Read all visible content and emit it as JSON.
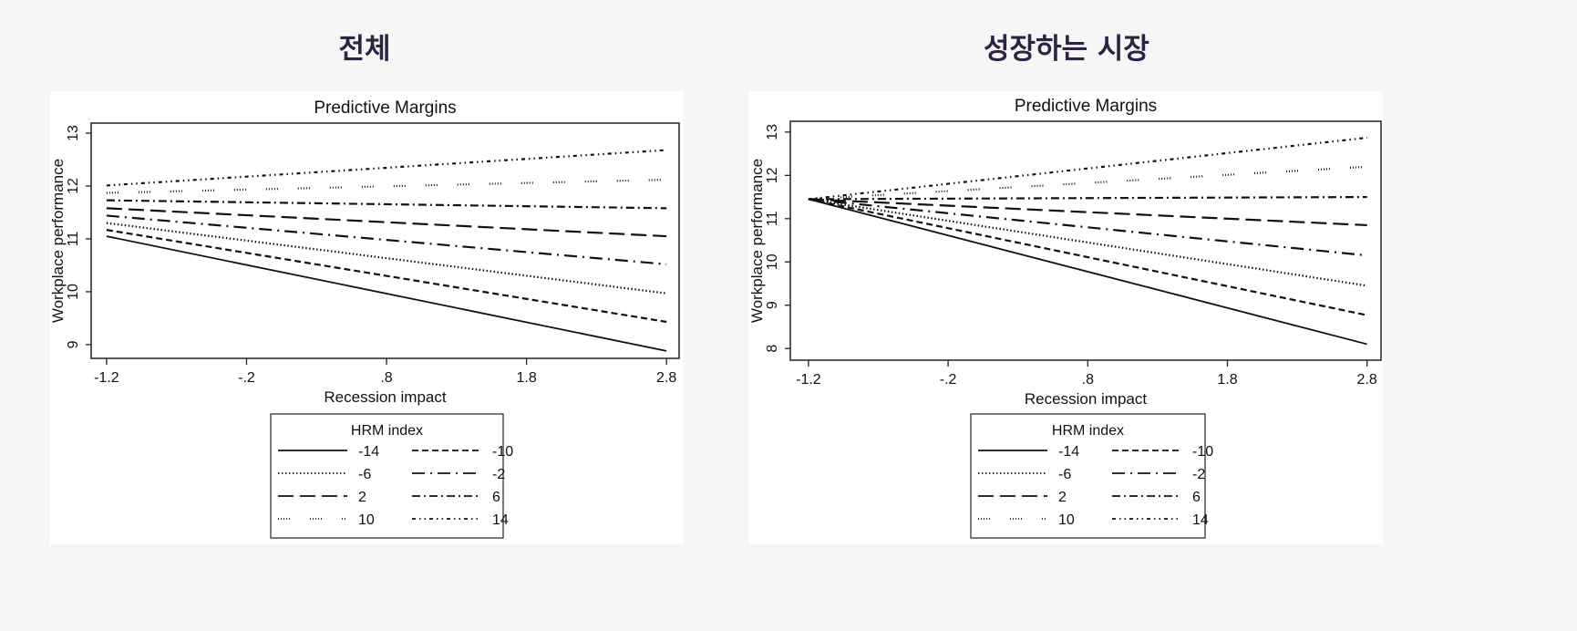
{
  "sections": [
    {
      "title": "전체"
    },
    {
      "title": "성장하는 시장"
    }
  ],
  "chart_data": [
    {
      "type": "line",
      "title": "Predictive Margins",
      "xlabel": "Recession impact",
      "ylabel": "Workplace performance",
      "x": [
        -1.2,
        2.8
      ],
      "xticks": [
        -1.2,
        -0.2,
        0.8,
        1.8,
        2.8
      ],
      "xtick_labels": [
        "-1.2",
        "-.2",
        ".8",
        "1.8",
        "2.8"
      ],
      "yticks": [
        9,
        10,
        11,
        12,
        13
      ],
      "ytick_labels": [
        "9",
        "10",
        "11",
        "12",
        "13"
      ],
      "xlim": [
        -1.31,
        2.89
      ],
      "ylim": [
        8.74,
        13.19
      ],
      "grid": false,
      "legend": {
        "title": "HRM index",
        "placement": "bottom"
      },
      "series": [
        {
          "name": "-14",
          "style": "solid",
          "values": [
            11.05,
            8.88
          ]
        },
        {
          "name": "-10",
          "style": "dash",
          "values": [
            11.17,
            9.43
          ]
        },
        {
          "name": "-6",
          "style": "dot",
          "values": [
            11.3,
            9.97
          ]
        },
        {
          "name": "-2",
          "style": "longdash-dot",
          "values": [
            11.44,
            10.52
          ]
        },
        {
          "name": "2",
          "style": "longdash",
          "values": [
            11.58,
            11.05
          ]
        },
        {
          "name": "6",
          "style": "dash-dot",
          "values": [
            11.73,
            11.58
          ]
        },
        {
          "name": "10",
          "style": "sparse-dot",
          "values": [
            11.87,
            12.12
          ]
        },
        {
          "name": "14",
          "style": "dash-dot-dot",
          "values": [
            12.01,
            12.68
          ]
        }
      ]
    },
    {
      "type": "line",
      "title": "Predictive Margins",
      "xlabel": "Recession impact",
      "ylabel": "Workplace performance",
      "x": [
        -1.2,
        2.8
      ],
      "xticks": [
        -1.2,
        -0.2,
        0.8,
        1.8,
        2.8
      ],
      "xtick_labels": [
        "-1.2",
        "-.2",
        ".8",
        "1.8",
        "2.8"
      ],
      "yticks": [
        8,
        9,
        10,
        11,
        12,
        13
      ],
      "ytick_labels": [
        "8",
        "9",
        "10",
        "11",
        "12",
        "13"
      ],
      "xlim": [
        -1.33,
        2.9
      ],
      "ylim": [
        7.73,
        13.25
      ],
      "grid": false,
      "legend": {
        "title": "HRM index",
        "placement": "bottom"
      },
      "series": [
        {
          "name": "-14",
          "style": "solid",
          "values": [
            11.45,
            8.1
          ]
        },
        {
          "name": "-10",
          "style": "dash",
          "values": [
            11.45,
            8.77
          ]
        },
        {
          "name": "-6",
          "style": "dot",
          "values": [
            11.45,
            9.45
          ]
        },
        {
          "name": "-2",
          "style": "longdash-dot",
          "values": [
            11.45,
            10.15
          ]
        },
        {
          "name": "2",
          "style": "longdash",
          "values": [
            11.45,
            10.85
          ]
        },
        {
          "name": "6",
          "style": "dash-dot",
          "values": [
            11.45,
            11.5
          ]
        },
        {
          "name": "10",
          "style": "sparse-dot",
          "values": [
            11.45,
            12.2
          ]
        },
        {
          "name": "14",
          "style": "dash-dot-dot",
          "values": [
            11.45,
            12.87
          ]
        }
      ]
    }
  ]
}
